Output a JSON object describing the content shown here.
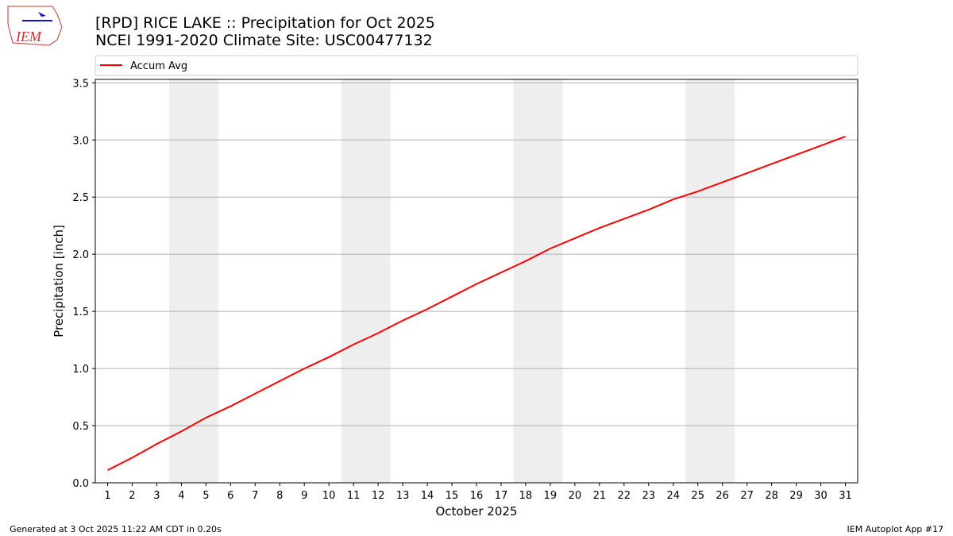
{
  "logo": "IEM",
  "chart_data": {
    "type": "line",
    "title": "[RPD] RICE LAKE :: Precipitation for Oct 2025",
    "subtitle": "NCEI 1991-2020 Climate Site: USC00477132",
    "xlabel": "October 2025",
    "ylabel": "Precipitation [inch]",
    "x": [
      1,
      2,
      3,
      4,
      5,
      6,
      7,
      8,
      9,
      10,
      11,
      12,
      13,
      14,
      15,
      16,
      17,
      18,
      19,
      20,
      21,
      22,
      23,
      24,
      25,
      26,
      27,
      28,
      29,
      30,
      31
    ],
    "series": [
      {
        "name": "Accum Avg",
        "color": "#ff0000",
        "values": [
          0.11,
          0.22,
          0.34,
          0.45,
          0.57,
          0.67,
          0.78,
          0.89,
          1.0,
          1.1,
          1.21,
          1.31,
          1.42,
          1.52,
          1.63,
          1.74,
          1.84,
          1.94,
          2.05,
          2.14,
          2.23,
          2.31,
          2.39,
          2.48,
          2.55,
          2.63,
          2.71,
          2.79,
          2.87,
          2.95,
          3.03
        ]
      }
    ],
    "xlim": [
      0.5,
      31.5
    ],
    "ylim": [
      0,
      3.53
    ],
    "xticks": [
      1,
      2,
      3,
      4,
      5,
      6,
      7,
      8,
      9,
      10,
      11,
      12,
      13,
      14,
      15,
      16,
      17,
      18,
      19,
      20,
      21,
      22,
      23,
      24,
      25,
      26,
      27,
      28,
      29,
      30,
      31
    ],
    "yticks": [
      {
        "value": 0,
        "label": "0.0"
      },
      {
        "value": 0.5,
        "label": "0.5"
      },
      {
        "value": 1,
        "label": "1.0"
      },
      {
        "value": 1.5,
        "label": "1.5"
      },
      {
        "value": 2,
        "label": "2.0"
      },
      {
        "value": 2.5,
        "label": "2.5"
      },
      {
        "value": 3,
        "label": "3.0"
      },
      {
        "value": 3.5,
        "label": "3.5"
      }
    ],
    "grid": true,
    "shaded_spans": [
      [
        3.5,
        5.5
      ],
      [
        10.5,
        12.5
      ],
      [
        17.5,
        19.5
      ],
      [
        24.5,
        26.5
      ]
    ],
    "shade_color": "#eeeeee",
    "legend": "top"
  },
  "footer": {
    "left": "Generated at 3 Oct 2025 11:22 AM CDT in 0.20s",
    "right": "IEM Autoplot App #17"
  }
}
